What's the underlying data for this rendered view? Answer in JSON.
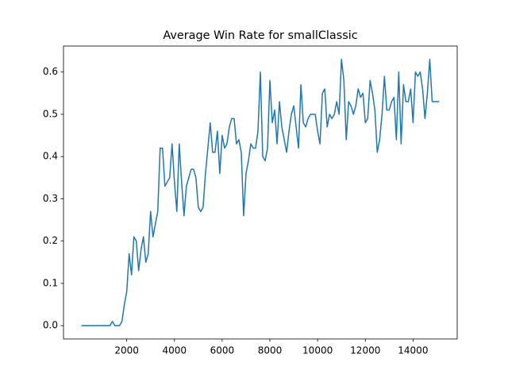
{
  "chart_data": {
    "type": "line",
    "title": "Average Win Rate for smallClassic",
    "x": [
      100,
      200,
      300,
      400,
      500,
      600,
      700,
      800,
      900,
      1000,
      1100,
      1200,
      1300,
      1400,
      1500,
      1600,
      1700,
      1800,
      1900,
      2000,
      2100,
      2200,
      2300,
      2400,
      2500,
      2600,
      2700,
      2800,
      2900,
      3000,
      3100,
      3200,
      3300,
      3400,
      3500,
      3600,
      3700,
      3800,
      3900,
      4000,
      4100,
      4200,
      4300,
      4400,
      4500,
      4600,
      4700,
      4800,
      4900,
      5000,
      5100,
      5200,
      5300,
      5400,
      5500,
      5600,
      5700,
      5800,
      5900,
      6000,
      6100,
      6200,
      6300,
      6400,
      6500,
      6600,
      6700,
      6800,
      6900,
      7000,
      7100,
      7200,
      7300,
      7400,
      7500,
      7600,
      7700,
      7800,
      7900,
      8000,
      8100,
      8200,
      8300,
      8400,
      8500,
      8600,
      8700,
      8800,
      8900,
      9000,
      9100,
      9200,
      9300,
      9400,
      9500,
      9600,
      9700,
      9800,
      9900,
      10000,
      10100,
      10200,
      10300,
      10400,
      10500,
      10600,
      10700,
      10800,
      10900,
      11000,
      11100,
      11200,
      11300,
      11400,
      11500,
      11600,
      11700,
      11800,
      11900,
      12000,
      12100,
      12200,
      12300,
      12400,
      12500,
      12600,
      12700,
      12800,
      12900,
      13000,
      13100,
      13200,
      13300,
      13400,
      13500,
      13600,
      13700,
      13800,
      13900,
      14000,
      14100,
      14200,
      14300,
      14400,
      14500,
      14600,
      14700,
      14800,
      14900,
      15000,
      15100
    ],
    "series": [
      {
        "color": "#1f77b4",
        "values": [
          0,
          0,
          0,
          0,
          0,
          0,
          0,
          0,
          0,
          0,
          0,
          0,
          0,
          0.01,
          0,
          0,
          0,
          0.01,
          0.05,
          0.08,
          0.17,
          0.12,
          0.21,
          0.2,
          0.13,
          0.18,
          0.21,
          0.15,
          0.17,
          0.27,
          0.21,
          0.24,
          0.27,
          0.42,
          0.42,
          0.33,
          0.34,
          0.35,
          0.43,
          0.34,
          0.27,
          0.43,
          0.34,
          0.26,
          0.33,
          0.35,
          0.37,
          0.37,
          0.35,
          0.28,
          0.27,
          0.28,
          0.36,
          0.42,
          0.48,
          0.41,
          0.41,
          0.46,
          0.36,
          0.45,
          0.42,
          0.43,
          0.47,
          0.49,
          0.49,
          0.43,
          0.44,
          0.41,
          0.26,
          0.36,
          0.39,
          0.43,
          0.42,
          0.42,
          0.46,
          0.6,
          0.4,
          0.39,
          0.42,
          0.58,
          0.48,
          0.51,
          0.43,
          0.53,
          0.47,
          0.44,
          0.41,
          0.46,
          0.5,
          0.52,
          0.47,
          0.42,
          0.57,
          0.48,
          0.47,
          0.49,
          0.5,
          0.5,
          0.5,
          0.46,
          0.43,
          0.55,
          0.56,
          0.47,
          0.5,
          0.49,
          0.5,
          0.53,
          0.5,
          0.63,
          0.58,
          0.44,
          0.53,
          0.52,
          0.5,
          0.52,
          0.56,
          0.54,
          0.55,
          0.48,
          0.49,
          0.58,
          0.55,
          0.51,
          0.41,
          0.44,
          0.5,
          0.59,
          0.51,
          0.51,
          0.53,
          0.54,
          0.44,
          0.6,
          0.43,
          0.57,
          0.53,
          0.53,
          0.56,
          0.48,
          0.6,
          0.59,
          0.6,
          0.56,
          0.49,
          0.55,
          0.63,
          0.53,
          0.53,
          0.53,
          0.53
        ]
      }
    ],
    "xlim": [
      -650,
      15850
    ],
    "xticks": [
      2000,
      4000,
      6000,
      8000,
      10000,
      12000,
      14000
    ],
    "ylim": [
      -0.0315,
      0.6615
    ],
    "yticks": [
      {
        "value": 0,
        "label": "0.0"
      },
      0.1,
      0.2,
      0.3,
      0.4,
      0.5,
      0.6
    ]
  }
}
